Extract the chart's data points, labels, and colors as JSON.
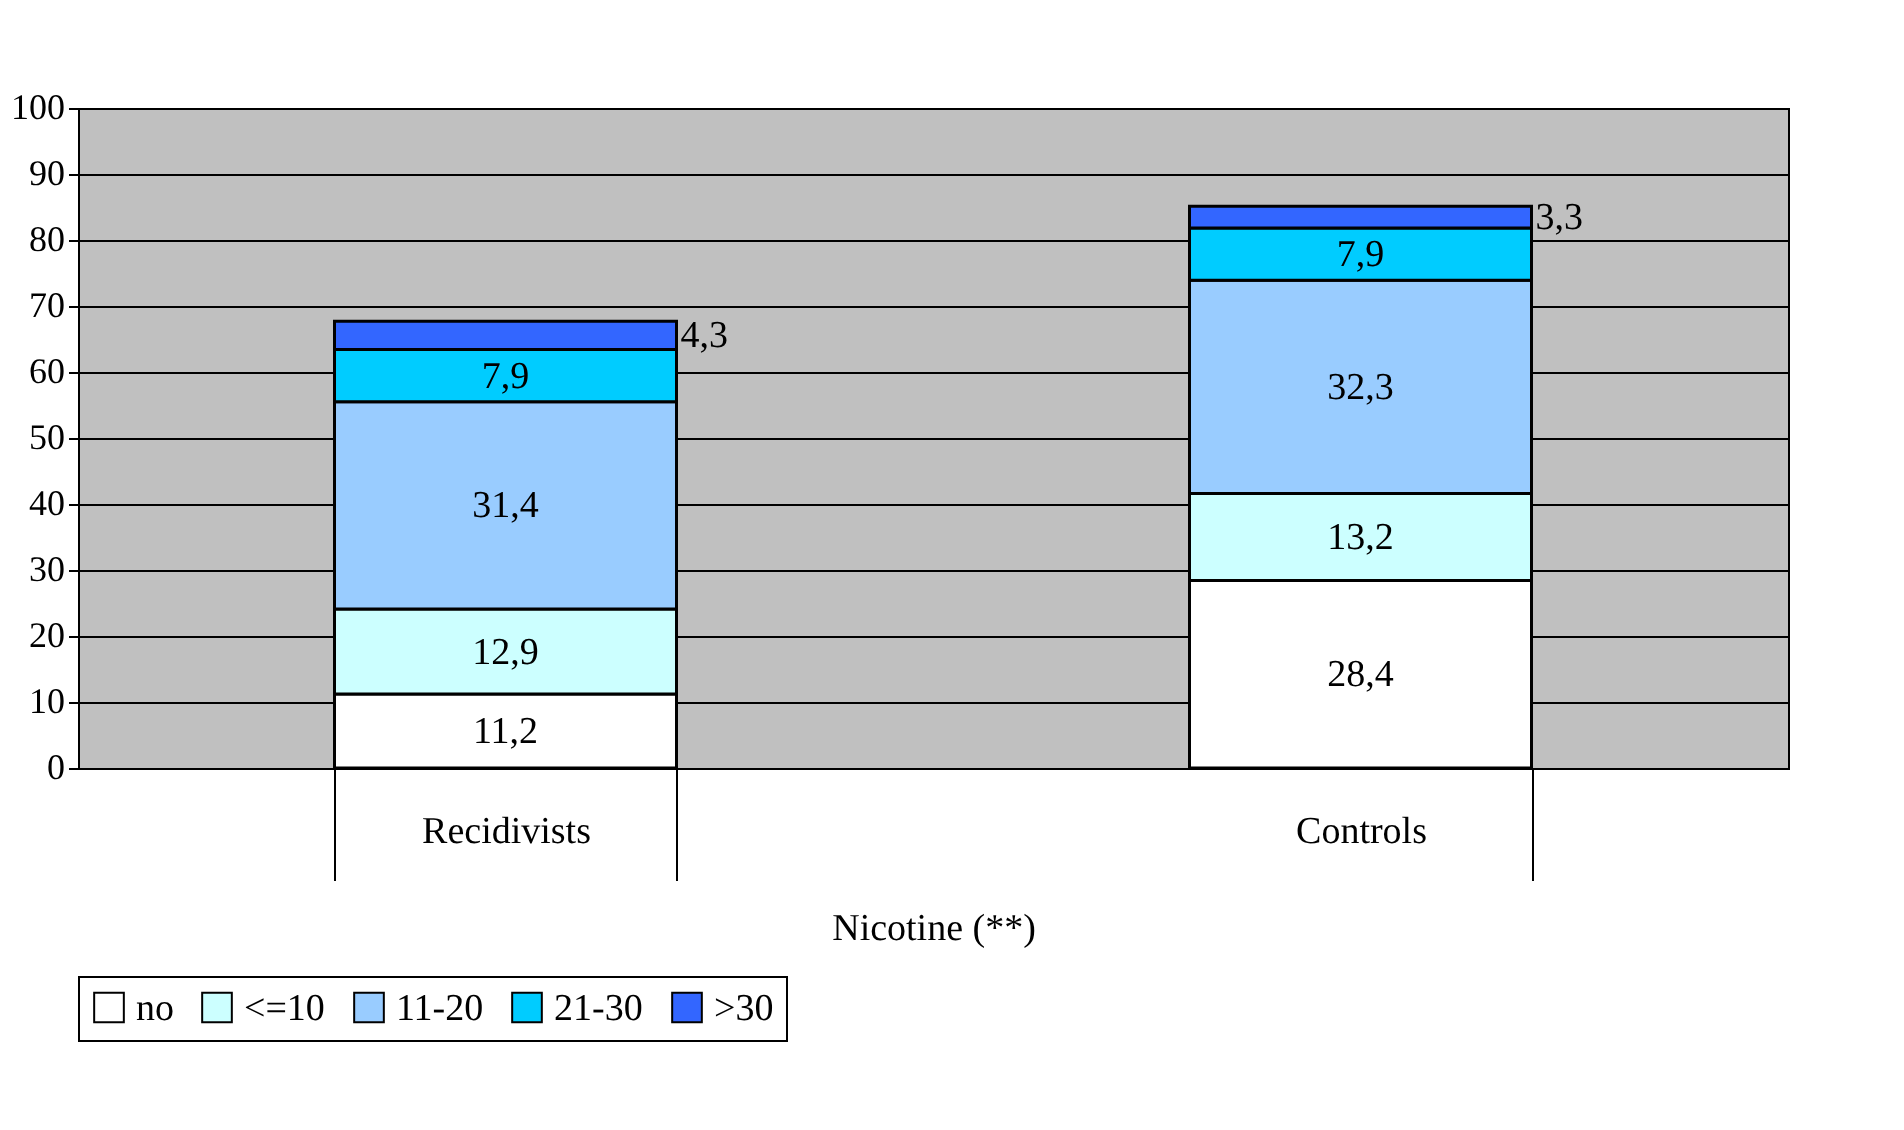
{
  "chart_data": {
    "type": "bar",
    "stacked": true,
    "xlabel": "Nicotine (**)",
    "categories": [
      "Recidivists",
      "Controls"
    ],
    "series": [
      {
        "name": "no",
        "color": "#ffffff",
        "values": [
          11.2,
          28.4
        ],
        "value_labels": [
          "11,2",
          "28,4"
        ]
      },
      {
        "name": "<=10",
        "color": "#ccffff",
        "values": [
          12.9,
          13.2
        ],
        "value_labels": [
          "12,9",
          "13,2"
        ]
      },
      {
        "name": "11-20",
        "color": "#99ccff",
        "values": [
          31.4,
          32.3
        ],
        "value_labels": [
          "31,4",
          "32,3"
        ]
      },
      {
        "name": "21-30",
        "color": "#00ccff",
        "values": [
          7.9,
          7.9
        ],
        "value_labels": [
          "7,9",
          "7,9"
        ]
      },
      {
        "name": ">30",
        "color": "#3366ff",
        "values": [
          4.3,
          3.3
        ],
        "value_labels": [
          "4,3",
          "3,3"
        ]
      }
    ],
    "ylim": [
      0,
      100
    ],
    "yticks": [
      0,
      10,
      20,
      30,
      40,
      50,
      60,
      70,
      80,
      90,
      100
    ],
    "grid": "y",
    "legend": "bottom"
  }
}
